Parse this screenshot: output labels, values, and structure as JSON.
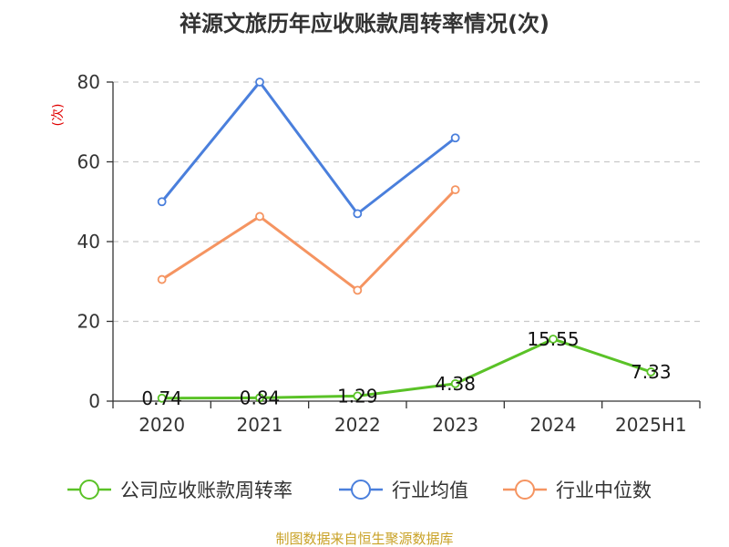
{
  "chart_data": {
    "type": "line",
    "title": "祥源文旅历年应收账款周转率情况(次)",
    "ylabel": "(次)",
    "xlabel": "",
    "categories": [
      "2020",
      "2021",
      "2022",
      "2023",
      "2024",
      "2025H1"
    ],
    "ylim": [
      0,
      80
    ],
    "yticks": [
      0,
      20,
      40,
      60,
      80
    ],
    "grid": true,
    "legend_position": "bottom",
    "series": [
      {
        "name": "公司应收账款周转率",
        "color": "#5ac227",
        "values": [
          0.74,
          0.84,
          1.29,
          4.38,
          15.55,
          7.33
        ],
        "labels": [
          "0.74",
          "0.84",
          "1.29",
          "4.38",
          "15.55",
          "7.33"
        ]
      },
      {
        "name": "行业均值",
        "color": "#4a7fdc",
        "values": [
          50,
          80,
          47,
          66,
          null,
          null
        ]
      },
      {
        "name": "行业中位数",
        "color": "#f59461",
        "values": [
          30.5,
          46.3,
          27.8,
          53,
          null,
          null
        ]
      }
    ],
    "source": "制图数据来自恒生聚源数据库"
  }
}
